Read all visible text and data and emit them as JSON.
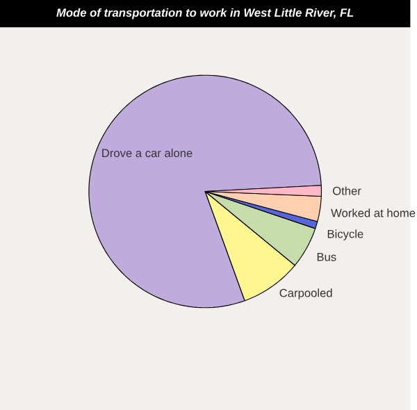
{
  "chart_data": {
    "type": "pie",
    "title": "Mode of transportation to work in West Little River, FL",
    "categories": [
      "Drove a car alone",
      "Carpooled",
      "Bus",
      "Bicycle",
      "Worked at home",
      "Other"
    ],
    "values": [
      79.7,
      8.5,
      5.8,
      1.0,
      3.5,
      1.5
    ],
    "colors": [
      "#c0acdc",
      "#fff68f",
      "#c6dcaa",
      "#5566dd",
      "#ffd0b0",
      "#ffb8c8"
    ]
  }
}
